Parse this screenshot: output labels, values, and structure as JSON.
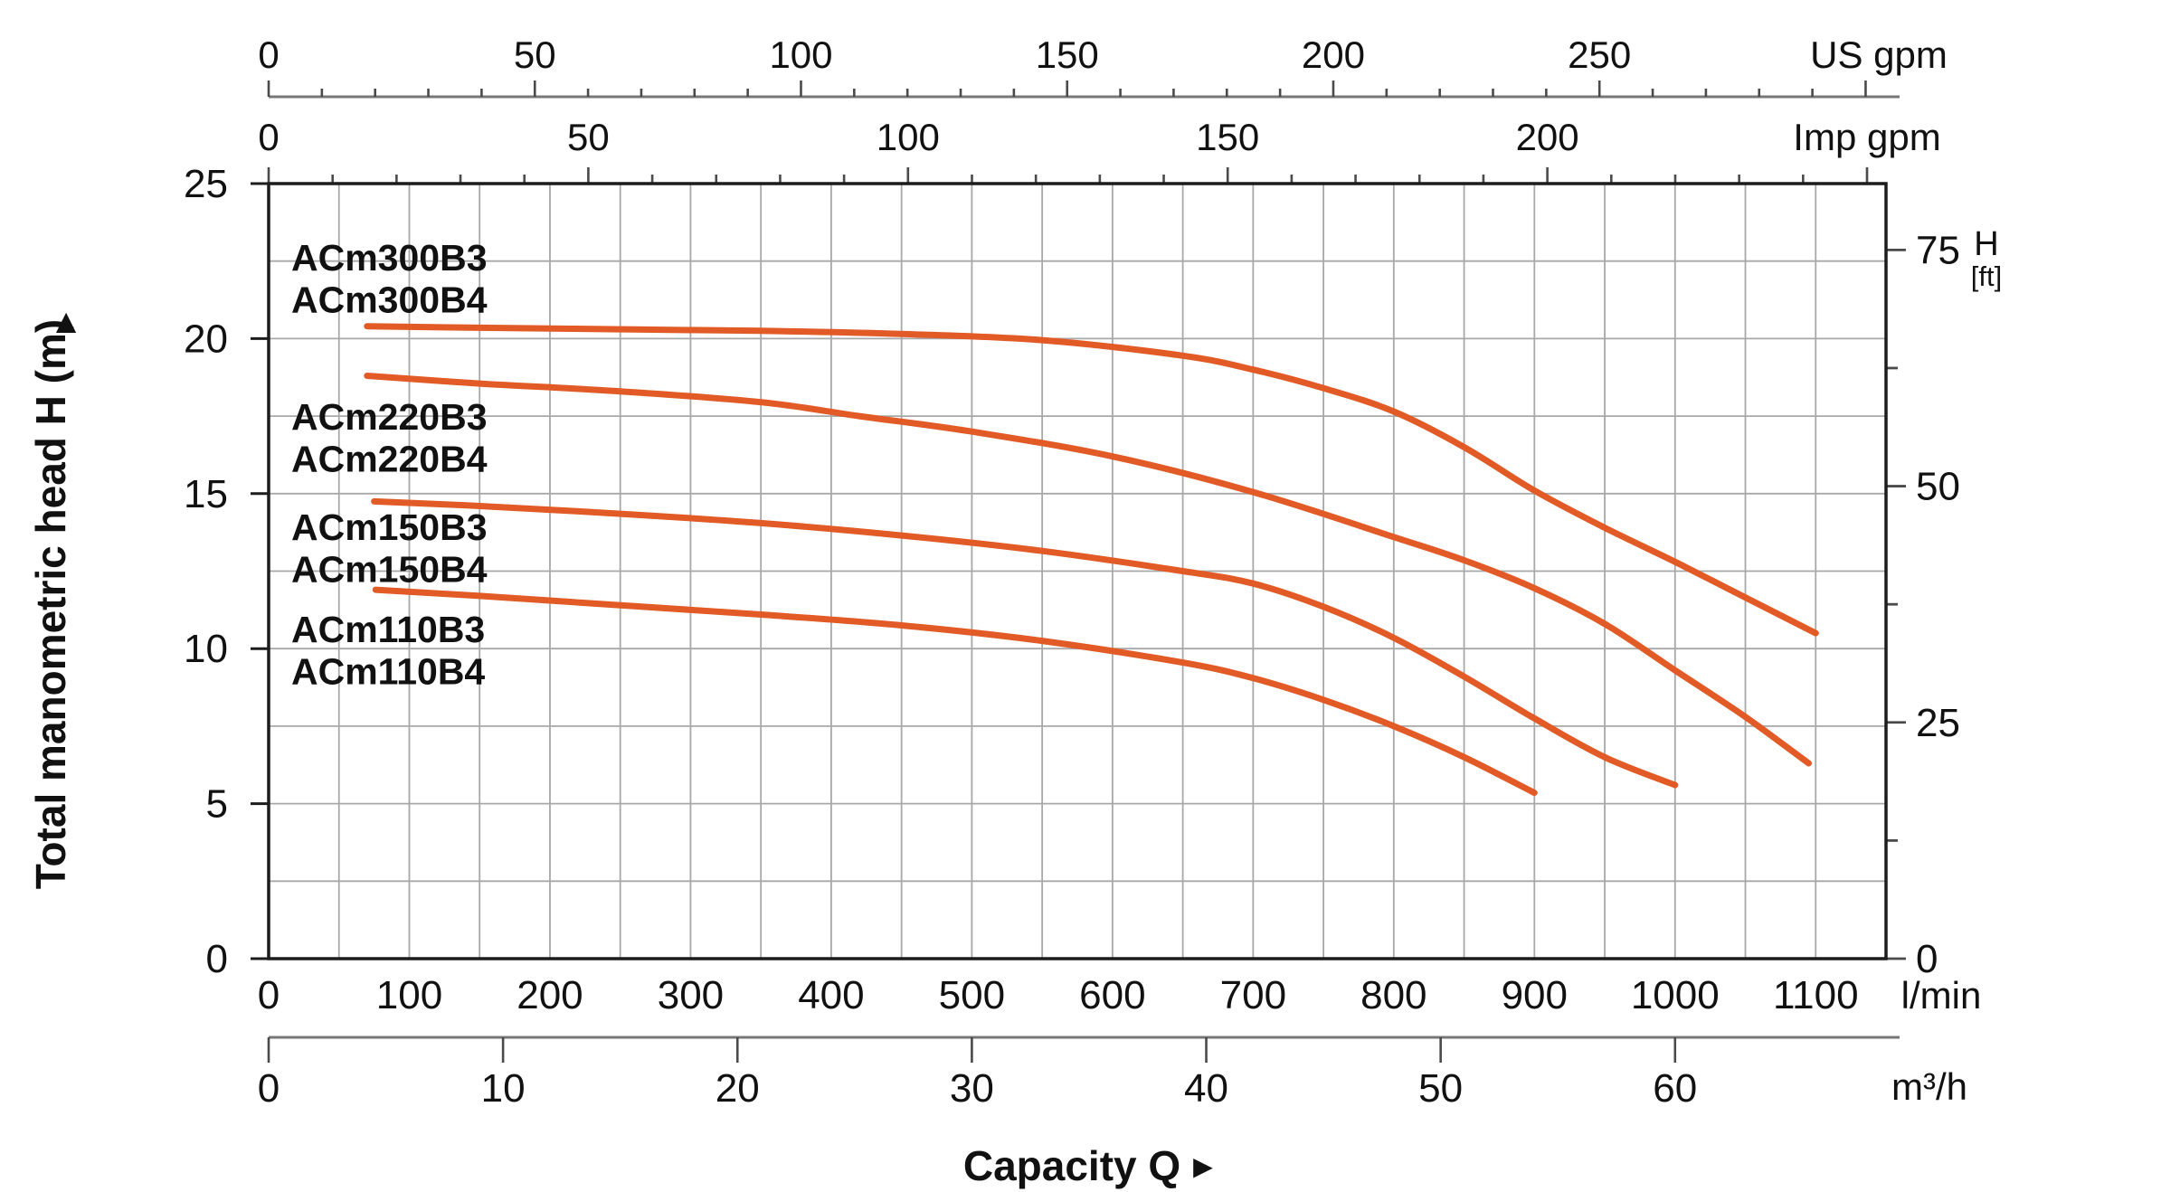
{
  "chart_data": {
    "type": "line",
    "title": "",
    "xlabel": "Capacity Q",
    "xlabel_arrow": "►",
    "ylabel_arrow": "▲",
    "grid": true,
    "colors": {
      "curve": "#e25a26",
      "grid": "#a8a8a8",
      "frame": "#1c1c1c",
      "ruler": "#777777",
      "tick": "#4a4a4a",
      "text": "#111111"
    },
    "x_scales": {
      "l_min": {
        "unit": "l/min",
        "min": 0,
        "max": 1150,
        "grid_step": 50,
        "labels": [
          0,
          100,
          200,
          300,
          400,
          500,
          600,
          700,
          800,
          900,
          1000,
          1100
        ]
      },
      "m3_h": {
        "unit": "m³/h",
        "lmin_per_unit": 16.6667,
        "labels": [
          0,
          10,
          20,
          30,
          40,
          50,
          60
        ]
      },
      "us_gpm": {
        "unit": "US gpm",
        "lmin_per_unit": 3.785,
        "labels": [
          0,
          50,
          100,
          150,
          200,
          250
        ],
        "minor_step": 10,
        "max_tick": 300
      },
      "imp_gpm": {
        "unit": "Imp gpm",
        "lmin_per_unit": 4.546,
        "labels": [
          0,
          50,
          100,
          150,
          200
        ],
        "minor_step": 10,
        "max_tick": 250
      }
    },
    "y_scales": {
      "m": {
        "label": "Total manometric head H (m)",
        "min": 0,
        "max": 25,
        "grid_step": 2.5,
        "labels": [
          0,
          5,
          10,
          15,
          20,
          25
        ]
      },
      "ft": {
        "label": "H",
        "unit": "[ft]",
        "m_per_unit": 0.3048,
        "labels": [
          0,
          25,
          50,
          75
        ],
        "minor_step": 12.5,
        "max_tick": 75
      }
    },
    "series": [
      {
        "name": "ACm300",
        "label_lines": [
          "ACm300B3",
          "ACm300B4"
        ],
        "points_lmin_m": [
          [
            70,
            20.4
          ],
          [
            150,
            20.35
          ],
          [
            250,
            20.3
          ],
          [
            350,
            20.25
          ],
          [
            450,
            20.15
          ],
          [
            550,
            19.95
          ],
          [
            650,
            19.45
          ],
          [
            700,
            19.0
          ],
          [
            750,
            18.4
          ],
          [
            800,
            17.65
          ],
          [
            850,
            16.5
          ],
          [
            900,
            15.1
          ],
          [
            950,
            13.9
          ],
          [
            1000,
            12.8
          ],
          [
            1050,
            11.65
          ],
          [
            1100,
            10.5
          ]
        ]
      },
      {
        "name": "ACm220",
        "label_lines": [
          "ACm220B3",
          "ACm220B4"
        ],
        "points_lmin_m": [
          [
            70,
            18.8
          ],
          [
            150,
            18.55
          ],
          [
            250,
            18.3
          ],
          [
            350,
            17.95
          ],
          [
            420,
            17.5
          ],
          [
            500,
            17.0
          ],
          [
            600,
            16.2
          ],
          [
            700,
            15.05
          ],
          [
            800,
            13.6
          ],
          [
            850,
            12.85
          ],
          [
            900,
            11.95
          ],
          [
            950,
            10.8
          ],
          [
            1000,
            9.3
          ],
          [
            1050,
            7.8
          ],
          [
            1095,
            6.3
          ]
        ]
      },
      {
        "name": "ACm150",
        "label_lines": [
          "ACm150B3",
          "ACm150B4"
        ],
        "points_lmin_m": [
          [
            75,
            14.75
          ],
          [
            150,
            14.6
          ],
          [
            250,
            14.35
          ],
          [
            350,
            14.05
          ],
          [
            450,
            13.65
          ],
          [
            550,
            13.15
          ],
          [
            650,
            12.5
          ],
          [
            700,
            12.1
          ],
          [
            750,
            11.35
          ],
          [
            800,
            10.35
          ],
          [
            850,
            9.1
          ],
          [
            900,
            7.75
          ],
          [
            950,
            6.5
          ],
          [
            1000,
            5.6
          ]
        ]
      },
      {
        "name": "ACm110",
        "label_lines": [
          "ACm110B3",
          "ACm110B4"
        ],
        "points_lmin_m": [
          [
            76,
            11.9
          ],
          [
            150,
            11.7
          ],
          [
            250,
            11.4
          ],
          [
            350,
            11.1
          ],
          [
            450,
            10.75
          ],
          [
            550,
            10.25
          ],
          [
            650,
            9.55
          ],
          [
            700,
            9.05
          ],
          [
            750,
            8.35
          ],
          [
            800,
            7.5
          ],
          [
            850,
            6.5
          ],
          [
            900,
            5.35
          ]
        ]
      }
    ]
  }
}
